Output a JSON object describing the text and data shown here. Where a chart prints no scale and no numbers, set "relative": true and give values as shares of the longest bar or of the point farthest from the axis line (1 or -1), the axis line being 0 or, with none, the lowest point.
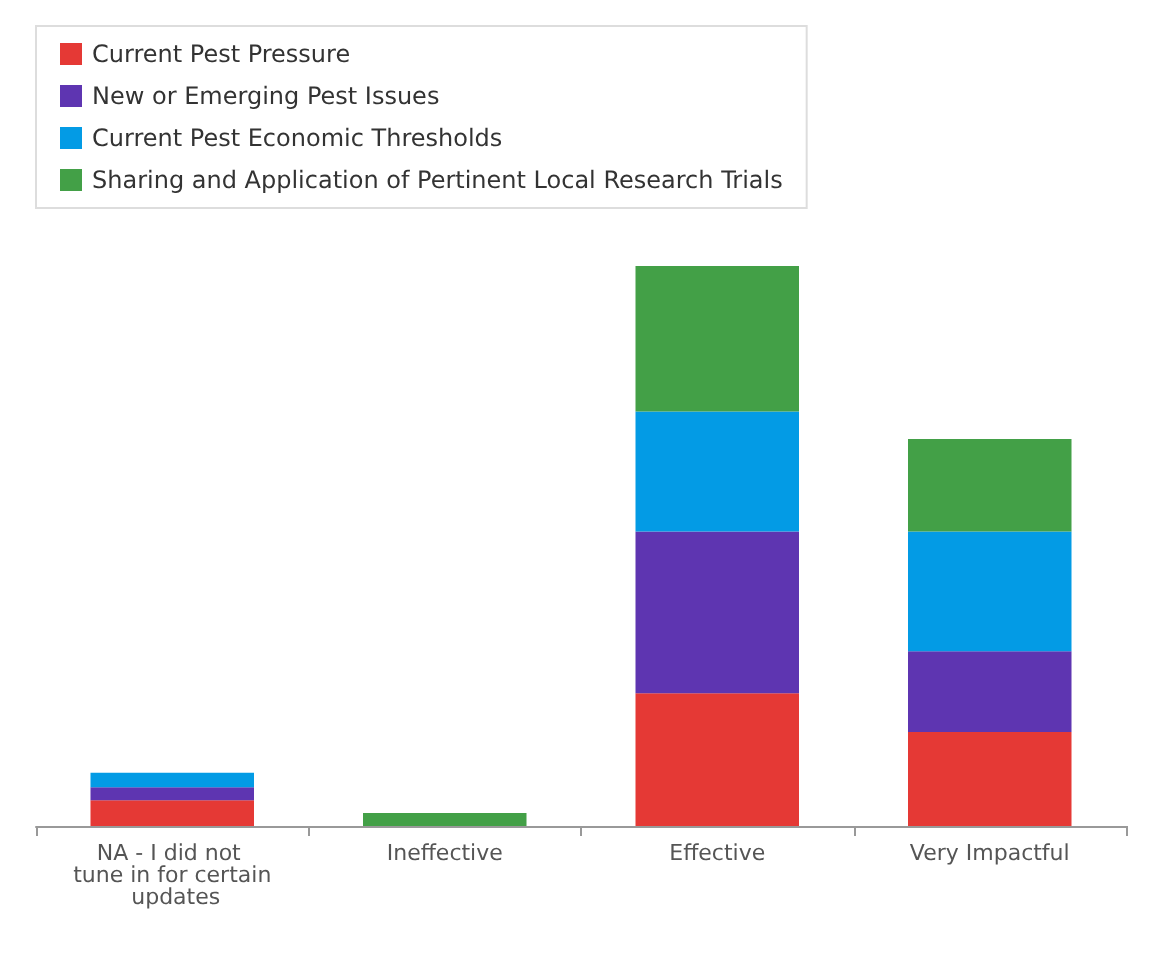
{
  "chart_data": {
    "type": "bar",
    "stacked": true,
    "relative": true,
    "legend": "top left",
    "grid": false,
    "categories": [
      "NA - I did not tune in for certain updates",
      "Ineffective",
      "Effective",
      "Very Impactful"
    ],
    "series": [
      {
        "name": "Current Pest Pressure",
        "color": "#e53935",
        "values": [
          0.046,
          0,
          0.237,
          0.168
        ]
      },
      {
        "name": "New or Emerging Pest Issues",
        "color": "#5e35b1",
        "values": [
          0.023,
          0,
          0.289,
          0.144
        ]
      },
      {
        "name": "Current Pest Economic Thresholds",
        "color": "#039be5",
        "values": [
          0.026,
          0,
          0.214,
          0.214
        ]
      },
      {
        "name": "Sharing and Application of Pertinent Local Research Trials",
        "color": "#43a047",
        "values": [
          0,
          0.023,
          0.26,
          0.165
        ]
      }
    ]
  }
}
